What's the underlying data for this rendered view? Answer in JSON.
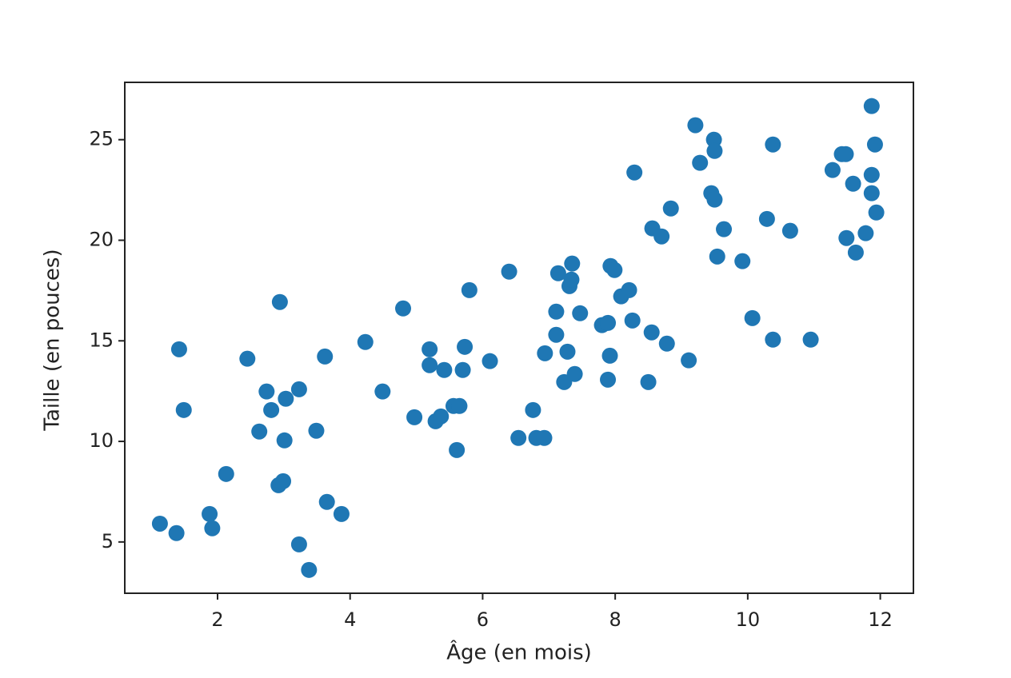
{
  "chart_data": {
    "type": "scatter",
    "x_label": "Âge (en mois)",
    "y_label": "Taille (en pouces)",
    "x": [
      1.13,
      1.38,
      1.42,
      1.49,
      1.88,
      1.92,
      2.13,
      2.45,
      2.63,
      2.74,
      2.81,
      2.94,
      3.03,
      3.01,
      2.92,
      2.99,
      3.23,
      3.23,
      3.38,
      3.49,
      3.62,
      3.65,
      3.87,
      4.23,
      4.49,
      4.8,
      4.97,
      5.2,
      5.2,
      5.29,
      5.37,
      5.42,
      5.56,
      5.65,
      5.61,
      5.7,
      5.73,
      5.8,
      6.11,
      6.4,
      6.54,
      6.76,
      6.81,
      6.93,
      6.94,
      7.11,
      7.11,
      7.14,
      7.23,
      7.28,
      7.31,
      7.35,
      7.39,
      7.34,
      7.47,
      7.8,
      7.89,
      7.93,
      7.99,
      7.92,
      7.89,
      8.09,
      8.21,
      8.26,
      8.29,
      8.5,
      8.55,
      8.56,
      8.7,
      8.78,
      8.84,
      9.11,
      9.21,
      9.28,
      9.45,
      9.5,
      9.49,
      9.5,
      9.54,
      9.64,
      9.92,
      10.07,
      10.29,
      10.38,
      10.38,
      10.64,
      10.95,
      11.28,
      11.42,
      11.48,
      11.49,
      11.59,
      11.63,
      11.78,
      11.87,
      11.87,
      11.87,
      11.92,
      11.94
    ],
    "values": [
      5.91,
      5.44,
      14.58,
      11.56,
      6.39,
      5.68,
      8.38,
      14.11,
      10.49,
      12.48,
      11.56,
      16.93,
      12.12,
      10.05,
      7.82,
      8.02,
      12.59,
      4.88,
      3.61,
      10.53,
      14.22,
      6.99,
      6.39,
      14.94,
      12.48,
      16.61,
      11.2,
      14.58,
      13.79,
      11.0,
      11.24,
      13.55,
      11.76,
      11.76,
      9.57,
      13.55,
      14.7,
      17.52,
      13.99,
      18.44,
      10.17,
      11.56,
      10.17,
      10.17,
      14.38,
      16.45,
      15.3,
      18.36,
      12.95,
      14.46,
      17.72,
      18.84,
      13.35,
      18.04,
      16.37,
      15.78,
      15.89,
      18.72,
      18.52,
      14.26,
      13.07,
      17.21,
      17.52,
      16.01,
      23.37,
      12.95,
      15.42,
      20.59,
      20.19,
      14.86,
      21.58,
      14.03,
      25.72,
      23.85,
      22.34,
      22.02,
      25.0,
      24.44,
      19.19,
      20.55,
      18.96,
      16.13,
      21.06,
      24.76,
      15.06,
      20.47,
      15.06,
      23.49,
      24.28,
      24.28,
      20.11,
      22.81,
      19.39,
      20.35,
      26.67,
      23.25,
      22.34,
      24.76,
      21.38
    ],
    "color": "#1f77b4",
    "xlim": [
      0.6,
      12.5
    ],
    "xticks": [
      2,
      4,
      6,
      8,
      10,
      12
    ],
    "ylim": [
      2.45,
      27.85
    ],
    "yticks": [
      5,
      10,
      15,
      20,
      25
    ]
  }
}
